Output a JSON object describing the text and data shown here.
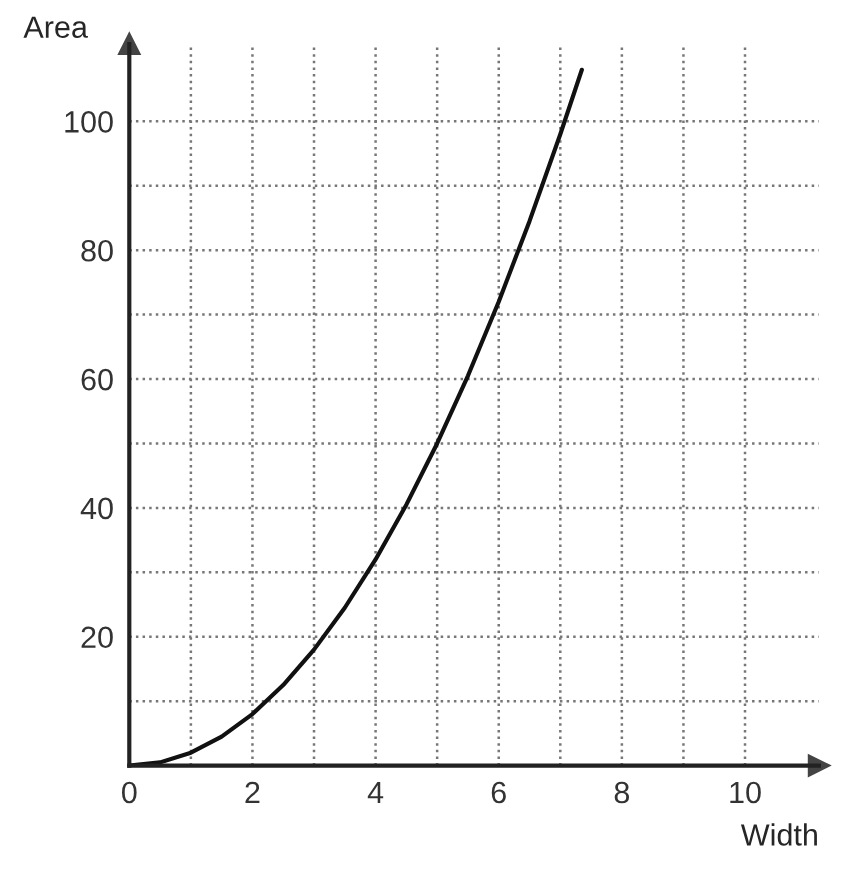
{
  "chart_data": {
    "type": "line",
    "xlabel": "Width",
    "ylabel": "Area",
    "x": [
      0,
      0.5,
      1,
      1.5,
      2,
      2.5,
      3,
      3.5,
      4,
      4.5,
      5,
      5.5,
      6,
      6.5,
      7,
      7.35
    ],
    "series": [
      {
        "color": "#111111",
        "values": [
          0,
          0.5,
          2,
          4.5,
          8,
          12.5,
          18,
          24.5,
          32,
          40.5,
          50,
          60.5,
          72,
          84.5,
          98,
          108
        ]
      }
    ],
    "xlim": [
      0,
      11.2
    ],
    "ylim": [
      0,
      112
    ],
    "xticks": [
      0,
      {
        "value": 1,
        "label": null
      },
      2,
      {
        "value": 3,
        "label": null
      },
      4,
      {
        "value": 5,
        "label": null
      },
      6,
      {
        "value": 7,
        "label": null
      },
      8,
      {
        "value": 9,
        "label": null
      },
      10
    ],
    "yticks": [
      {
        "value": 10,
        "label": null
      },
      20,
      {
        "value": 30,
        "label": null
      },
      40,
      {
        "value": 50,
        "label": null
      },
      60,
      {
        "value": 70,
        "label": null
      },
      80,
      {
        "value": 90,
        "label": null
      },
      100
    ],
    "grid": true,
    "marker": "none",
    "line_style": "solid"
  }
}
